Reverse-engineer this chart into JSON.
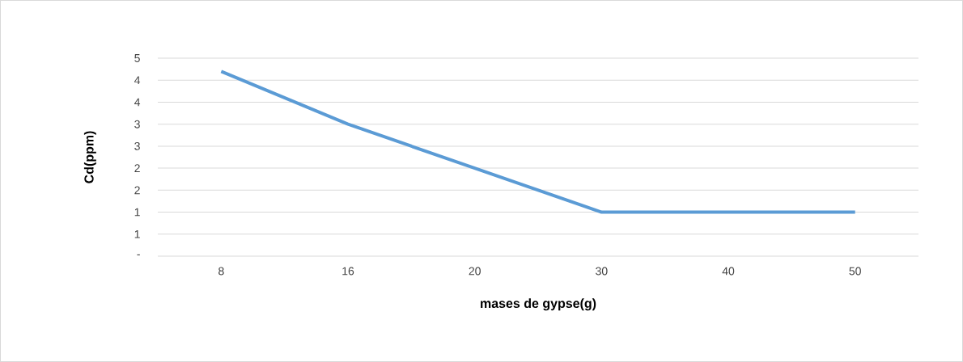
{
  "chart_data": {
    "type": "line",
    "xlabel": "mases de gypse(g)",
    "ylabel": "Cd(ppm)",
    "categories": [
      "8",
      "16",
      "20",
      "30",
      "40",
      "50"
    ],
    "series": [
      {
        "color": "#5b9bd5",
        "values": [
          4.2,
          3.0,
          2.0,
          1.0,
          1.0,
          1.0
        ]
      }
    ],
    "ylim": [
      0,
      4.5
    ],
    "yticks": [
      {
        "value": 0,
        "label": "-"
      },
      {
        "value": 0.5,
        "label": "1"
      },
      {
        "value": 1,
        "label": "1"
      },
      {
        "value": 1.5,
        "label": "2"
      },
      {
        "value": 2,
        "label": "2"
      },
      {
        "value": 2.5,
        "label": "3"
      },
      {
        "value": 3,
        "label": "3"
      },
      {
        "value": 3.5,
        "label": "4"
      },
      {
        "value": 4,
        "label": "4"
      },
      {
        "value": 4.5,
        "label": "5"
      }
    ],
    "grid": "y",
    "marker": "none",
    "line_style": "solid"
  }
}
